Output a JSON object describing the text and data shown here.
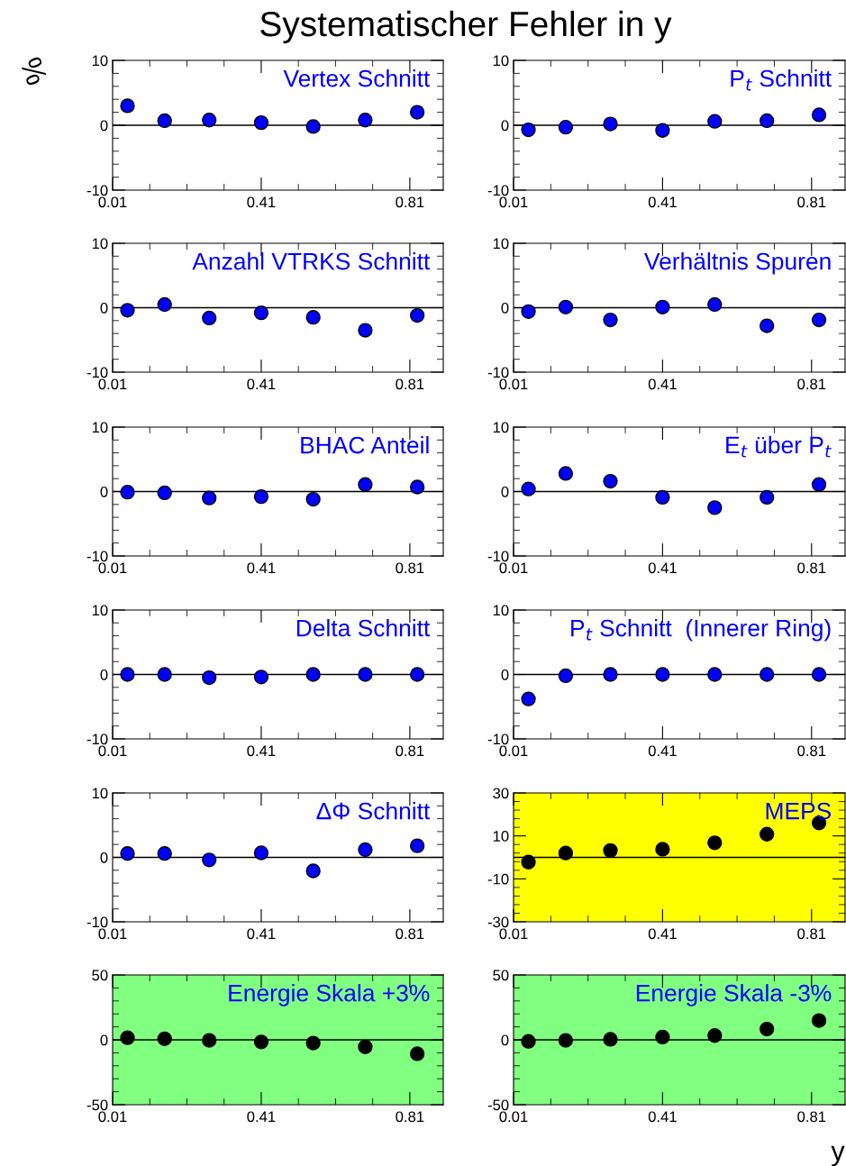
{
  "chart_data": [
    {
      "type": "scatter",
      "title": "Vertex Schnitt",
      "annotations": [
        "Systematischer Fehler in y"
      ],
      "ylabel": "%",
      "x": [
        0.05,
        0.15,
        0.27,
        0.41,
        0.55,
        0.69,
        0.83
      ],
      "series": [
        {
          "color": "#0000ff",
          "values": [
            3.0,
            0.7,
            0.8,
            0.4,
            -0.2,
            0.8,
            2.0
          ]
        }
      ],
      "xlim": [
        0.01,
        0.9
      ],
      "xticks": [
        0.01,
        0.41,
        0.81
      ],
      "ylim": [
        -10,
        10
      ],
      "yticks": [
        -10,
        0,
        10
      ],
      "ref_lines": [
        {
          "axis": "y",
          "value": 0,
          "color": "#000000"
        }
      ],
      "marker": "circle",
      "grid": false,
      "legend": false
    },
    {
      "type": "scatter",
      "title": "P$_{t}$ Schnitt",
      "x": [
        0.05,
        0.15,
        0.27,
        0.41,
        0.55,
        0.69,
        0.83
      ],
      "series": [
        {
          "color": "#0000ff",
          "values": [
            -0.7,
            -0.3,
            0.2,
            -0.8,
            0.6,
            0.7,
            1.6
          ]
        }
      ],
      "xlim": [
        0.01,
        0.9
      ],
      "xticks": [
        0.01,
        0.41,
        0.81
      ],
      "ylim": [
        -10,
        10
      ],
      "yticks": [
        -10,
        0,
        10
      ],
      "ref_lines": [
        {
          "axis": "y",
          "value": 0,
          "color": "#000000"
        }
      ],
      "marker": "circle",
      "grid": false,
      "legend": false
    },
    {
      "type": "scatter",
      "title": "Anzahl VTRKS Schnitt",
      "x": [
        0.05,
        0.15,
        0.27,
        0.41,
        0.55,
        0.69,
        0.83
      ],
      "series": [
        {
          "color": "#0000ff",
          "values": [
            -0.4,
            0.5,
            -1.6,
            -0.8,
            -1.5,
            -3.5,
            -1.2
          ]
        }
      ],
      "xlim": [
        0.01,
        0.9
      ],
      "xticks": [
        0.01,
        0.41,
        0.81
      ],
      "ylim": [
        -10,
        10
      ],
      "yticks": [
        -10,
        0,
        10
      ],
      "ref_lines": [
        {
          "axis": "y",
          "value": 0,
          "color": "#000000"
        }
      ],
      "marker": "circle",
      "grid": false,
      "legend": false
    },
    {
      "type": "scatter",
      "title": "Verhältnis Spuren",
      "x": [
        0.05,
        0.15,
        0.27,
        0.41,
        0.55,
        0.69,
        0.83
      ],
      "series": [
        {
          "color": "#0000ff",
          "values": [
            -0.6,
            0.1,
            -1.9,
            0.1,
            0.5,
            -2.8,
            -1.9
          ]
        }
      ],
      "xlim": [
        0.01,
        0.9
      ],
      "xticks": [
        0.01,
        0.41,
        0.81
      ],
      "ylim": [
        -10,
        10
      ],
      "yticks": [
        -10,
        0,
        10
      ],
      "ref_lines": [
        {
          "axis": "y",
          "value": 0,
          "color": "#000000"
        }
      ],
      "marker": "circle",
      "grid": false,
      "legend": false
    },
    {
      "type": "scatter",
      "title": "BHAC Anteil",
      "x": [
        0.05,
        0.15,
        0.27,
        0.41,
        0.55,
        0.69,
        0.83
      ],
      "series": [
        {
          "color": "#0000ff",
          "values": [
            -0.1,
            -0.2,
            -1.0,
            -0.8,
            -1.2,
            1.1,
            0.7
          ]
        }
      ],
      "xlim": [
        0.01,
        0.9
      ],
      "xticks": [
        0.01,
        0.41,
        0.81
      ],
      "ylim": [
        -10,
        10
      ],
      "yticks": [
        -10,
        0,
        10
      ],
      "ref_lines": [
        {
          "axis": "y",
          "value": 0,
          "color": "#000000"
        }
      ],
      "marker": "circle",
      "grid": false,
      "legend": false
    },
    {
      "type": "scatter",
      "title": "E$_{t}$ über P$_{t}$",
      "x": [
        0.05,
        0.15,
        0.27,
        0.41,
        0.55,
        0.69,
        0.83
      ],
      "series": [
        {
          "color": "#0000ff",
          "values": [
            0.4,
            2.8,
            1.6,
            -0.9,
            -2.5,
            -0.9,
            1.1
          ]
        }
      ],
      "xlim": [
        0.01,
        0.9
      ],
      "xticks": [
        0.01,
        0.41,
        0.81
      ],
      "ylim": [
        -10,
        10
      ],
      "yticks": [
        -10,
        0,
        10
      ],
      "ref_lines": [
        {
          "axis": "y",
          "value": 0,
          "color": "#000000"
        }
      ],
      "marker": "circle",
      "grid": false,
      "legend": false
    },
    {
      "type": "scatter",
      "title": "Delta Schnitt",
      "x": [
        0.05,
        0.15,
        0.27,
        0.41,
        0.55,
        0.69,
        0.83
      ],
      "series": [
        {
          "color": "#0000ff",
          "values": [
            0.0,
            0.0,
            -0.5,
            -0.4,
            0.0,
            0.0,
            0.0
          ]
        }
      ],
      "xlim": [
        0.01,
        0.9
      ],
      "xticks": [
        0.01,
        0.41,
        0.81
      ],
      "ylim": [
        -10,
        10
      ],
      "yticks": [
        -10,
        0,
        10
      ],
      "ref_lines": [
        {
          "axis": "y",
          "value": 0,
          "color": "#000000"
        }
      ],
      "marker": "circle",
      "grid": false,
      "legend": false
    },
    {
      "type": "scatter",
      "title": "P$_{t}$ Schnitt  (Innerer Ring)",
      "x": [
        0.05,
        0.15,
        0.27,
        0.41,
        0.55,
        0.69,
        0.83
      ],
      "series": [
        {
          "color": "#0000ff",
          "values": [
            -3.8,
            -0.2,
            0.0,
            0.0,
            0.0,
            0.0,
            0.0
          ]
        }
      ],
      "xlim": [
        0.01,
        0.9
      ],
      "xticks": [
        0.01,
        0.41,
        0.81
      ],
      "ylim": [
        -10,
        10
      ],
      "yticks": [
        -10,
        0,
        10
      ],
      "ref_lines": [
        {
          "axis": "y",
          "value": 0,
          "color": "#000000"
        }
      ],
      "marker": "circle",
      "grid": false,
      "legend": false
    },
    {
      "type": "scatter",
      "title": "ΔΦ Schnitt",
      "x": [
        0.05,
        0.15,
        0.27,
        0.41,
        0.55,
        0.69,
        0.83
      ],
      "series": [
        {
          "color": "#0000ff",
          "values": [
            0.6,
            0.6,
            -0.4,
            0.7,
            -2.1,
            1.2,
            1.8
          ]
        }
      ],
      "xlim": [
        0.01,
        0.9
      ],
      "xticks": [
        0.01,
        0.41,
        0.81
      ],
      "ylim": [
        -10,
        10
      ],
      "yticks": [
        -10,
        0,
        10
      ],
      "ref_lines": [
        {
          "axis": "y",
          "value": 0,
          "color": "#000000"
        }
      ],
      "marker": "circle",
      "grid": false,
      "legend": false
    },
    {
      "type": "scatter",
      "title": "MEPS",
      "x": [
        0.05,
        0.15,
        0.27,
        0.41,
        0.55,
        0.69,
        0.83
      ],
      "series": [
        {
          "color": "#000000",
          "values": [
            -2.2,
            2.0,
            3.2,
            3.8,
            6.8,
            10.8,
            16.0
          ]
        }
      ],
      "xlim": [
        0.01,
        0.9
      ],
      "xticks": [
        0.01,
        0.41,
        0.81
      ],
      "ylim": [
        -30,
        30
      ],
      "yticks": [
        -30,
        -10,
        10,
        30
      ],
      "ref_lines": [
        {
          "axis": "y",
          "value": 0,
          "color": "#000000"
        }
      ],
      "bands": [
        {
          "axis": "y",
          "from": -30,
          "to": 30,
          "color": "#ffff00"
        }
      ],
      "marker": "circle",
      "grid": false,
      "legend": false
    },
    {
      "type": "scatter",
      "title": "Energie Skala +3%",
      "x": [
        0.05,
        0.15,
        0.27,
        0.41,
        0.55,
        0.69,
        0.83
      ],
      "series": [
        {
          "color": "#000000",
          "values": [
            1.6,
            0.8,
            -0.4,
            -1.6,
            -2.5,
            -5.4,
            -10.7
          ]
        }
      ],
      "xlim": [
        0.01,
        0.9
      ],
      "xticks": [
        0.01,
        0.41,
        0.81
      ],
      "ylim": [
        -50,
        50
      ],
      "yticks": [
        -50,
        0,
        50
      ],
      "ref_lines": [
        {
          "axis": "y",
          "value": 0,
          "color": "#000000"
        }
      ],
      "bands": [
        {
          "axis": "y",
          "from": -50,
          "to": 50,
          "color": "#80ff80"
        }
      ],
      "marker": "circle",
      "grid": false,
      "legend": false
    },
    {
      "type": "scatter",
      "title": "Energie Skala -3%",
      "xlabel": "y",
      "x": [
        0.05,
        0.15,
        0.27,
        0.41,
        0.55,
        0.69,
        0.83
      ],
      "series": [
        {
          "color": "#000000",
          "values": [
            -1.2,
            -0.4,
            0.4,
            2.1,
            3.3,
            8.3,
            14.9
          ]
        }
      ],
      "xlim": [
        0.01,
        0.9
      ],
      "xticks": [
        0.01,
        0.41,
        0.81
      ],
      "ylim": [
        -50,
        50
      ],
      "yticks": [
        -50,
        0,
        50
      ],
      "ref_lines": [
        {
          "axis": "y",
          "value": 0,
          "color": "#000000"
        }
      ],
      "bands": [
        {
          "axis": "y",
          "from": -50,
          "to": 50,
          "color": "#80ff80"
        }
      ],
      "marker": "circle",
      "grid": false,
      "legend": false
    }
  ]
}
